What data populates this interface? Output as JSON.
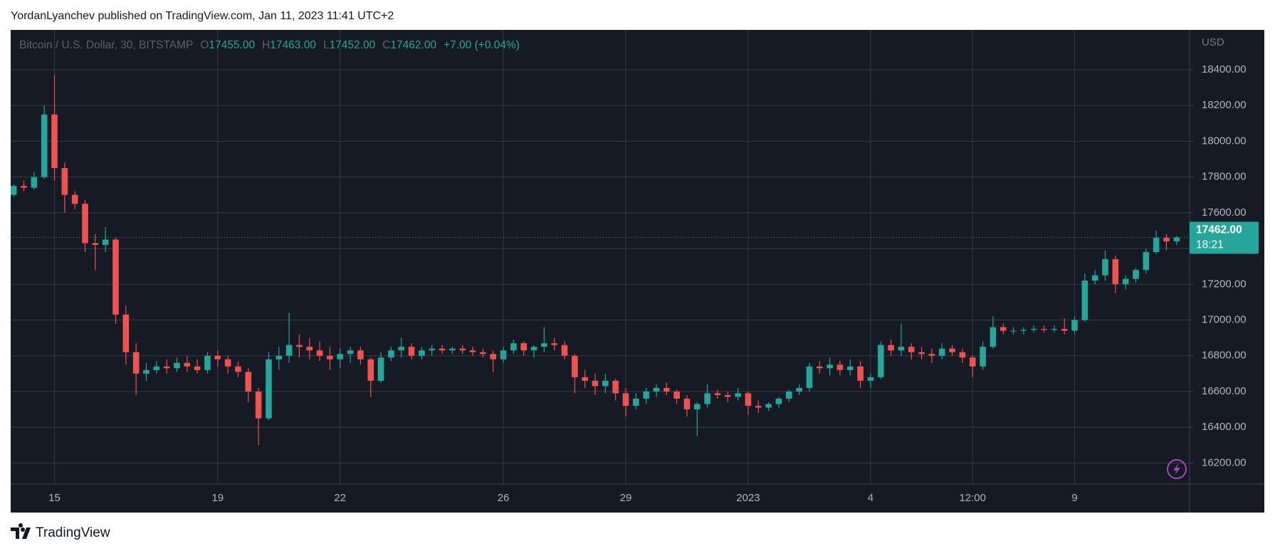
{
  "publisher_line": "YordanLyanchev published on TradingView.com, Jan 11, 2023 11:41 UTC+2",
  "brand": "TradingView",
  "chart_data": {
    "type": "candlestick",
    "symbol": "Bitcoin / U.S. Dollar, 30, BITSTAMP",
    "ohlc": [
      {
        "key": "O",
        "value": "17455.00"
      },
      {
        "key": "H",
        "value": "17463.00"
      },
      {
        "key": "L",
        "value": "17452.00"
      },
      {
        "key": "C",
        "value": "17462.00"
      }
    ],
    "change": "+7.00 (+0.04%)",
    "currency": "USD",
    "last_price": {
      "value": 17462,
      "label": "17462.00"
    },
    "countdown": "18:21",
    "up_color": "#26a69a",
    "down_color": "#ef5350",
    "grid": true,
    "categories": [
      null,
      null,
      null,
      null,
      "15",
      null,
      null,
      null,
      null,
      null,
      null,
      null,
      null,
      null,
      null,
      null,
      null,
      null,
      null,
      null,
      "19",
      null,
      null,
      null,
      null,
      null,
      null,
      null,
      null,
      null,
      null,
      null,
      "22",
      null,
      null,
      null,
      null,
      null,
      null,
      null,
      null,
      null,
      null,
      null,
      null,
      null,
      null,
      null,
      "26",
      null,
      null,
      null,
      null,
      null,
      null,
      null,
      null,
      null,
      null,
      null,
      "29",
      null,
      null,
      null,
      null,
      null,
      null,
      null,
      null,
      null,
      null,
      null,
      "2023",
      null,
      null,
      null,
      null,
      null,
      null,
      null,
      null,
      null,
      null,
      null,
      "4",
      null,
      null,
      null,
      null,
      null,
      null,
      null,
      null,
      null,
      "12:00",
      null,
      null,
      null,
      null,
      null,
      null,
      null,
      null,
      null,
      "9",
      null,
      null,
      null,
      null,
      null,
      null,
      null,
      null,
      null,
      null
    ],
    "open": [
      17700,
      17750,
      17740,
      17800,
      18150,
      17850,
      17700,
      17650,
      17430,
      17420,
      17450,
      17030,
      16820,
      16700,
      16720,
      16740,
      16730,
      16760,
      16740,
      16720,
      16800,
      16780,
      16740,
      16710,
      16600,
      16450,
      16780,
      16800,
      16860,
      16850,
      16830,
      16800,
      16780,
      16810,
      16830,
      16780,
      16660,
      16790,
      16830,
      16850,
      16800,
      16830,
      16840,
      16830,
      16840,
      16830,
      16820,
      16810,
      16780,
      16830,
      16870,
      16830,
      16850,
      16870,
      16860,
      16800,
      16680,
      16660,
      16630,
      16660,
      16590,
      16520,
      16560,
      16600,
      16620,
      16600,
      16560,
      16500,
      16530,
      16590,
      16580,
      16570,
      16590,
      16520,
      16510,
      16530,
      16560,
      16600,
      16620,
      16740,
      16730,
      16750,
      16720,
      16740,
      16660,
      16680,
      16860,
      16830,
      16850,
      16820,
      16810,
      16800,
      16840,
      16820,
      16790,
      16740,
      16850,
      16960,
      16940,
      16940,
      16945,
      16950,
      16945,
      16950,
      16940,
      17000,
      17220,
      17250,
      17340,
      17200,
      17230,
      17280,
      17380,
      17460,
      17440
    ],
    "high": [
      17760,
      17780,
      17830,
      18200,
      18370,
      17880,
      17720,
      17670,
      17480,
      17520,
      17460,
      17080,
      16870,
      16760,
      16770,
      16780,
      16790,
      16800,
      16780,
      16820,
      16830,
      16800,
      16770,
      16730,
      16620,
      16820,
      16850,
      17040,
      16920,
      16900,
      16880,
      16850,
      16840,
      16850,
      16850,
      16790,
      16820,
      16850,
      16900,
      16870,
      16850,
      16860,
      16860,
      16850,
      16860,
      16850,
      16840,
      16830,
      16850,
      16890,
      16880,
      16860,
      16960,
      16900,
      16880,
      16810,
      16720,
      16700,
      16700,
      16670,
      16620,
      16590,
      16620,
      16640,
      16650,
      16610,
      16580,
      16540,
      16640,
      16610,
      16600,
      16620,
      16600,
      16550,
      16540,
      16570,
      16610,
      16640,
      16760,
      16770,
      16790,
      16770,
      16780,
      16770,
      16700,
      16880,
      16890,
      16980,
      16870,
      16850,
      16840,
      16870,
      16860,
      16840,
      16800,
      16880,
      17020,
      16980,
      16960,
      16960,
      16970,
      16970,
      16970,
      17010,
      17020,
      17260,
      17280,
      17390,
      17360,
      17250,
      17290,
      17400,
      17500,
      17480,
      17470
    ],
    "low": [
      17690,
      17720,
      17730,
      17790,
      17780,
      17600,
      17620,
      17380,
      17280,
      17380,
      16980,
      16750,
      16580,
      16660,
      16700,
      16700,
      16710,
      16710,
      16700,
      16700,
      16740,
      16700,
      16680,
      16540,
      16300,
      16440,
      16720,
      16760,
      16790,
      16780,
      16770,
      16720,
      16730,
      16760,
      16750,
      16570,
      16650,
      16770,
      16790,
      16780,
      16780,
      16800,
      16810,
      16810,
      16810,
      16800,
      16790,
      16710,
      16760,
      16810,
      16800,
      16790,
      16820,
      16830,
      16780,
      16590,
      16620,
      16580,
      16590,
      16550,
      16460,
      16500,
      16530,
      16570,
      16580,
      16530,
      16460,
      16350,
      16510,
      16560,
      16540,
      16550,
      16470,
      16480,
      16490,
      16510,
      16540,
      16580,
      16600,
      16700,
      16690,
      16690,
      16690,
      16620,
      16620,
      16670,
      16800,
      16800,
      16780,
      16780,
      16760,
      16780,
      16800,
      16760,
      16680,
      16720,
      16840,
      16920,
      16920,
      16920,
      16930,
      16930,
      16930,
      16920,
      16920,
      16990,
      17200,
      17220,
      17150,
      17170,
      17210,
      17260,
      17370,
      17390,
      17420
    ],
    "close": [
      17750,
      17740,
      17800,
      18150,
      17850,
      17700,
      17650,
      17430,
      17420,
      17450,
      17030,
      16820,
      16700,
      16720,
      16740,
      16730,
      16760,
      16740,
      16720,
      16800,
      16780,
      16740,
      16710,
      16600,
      16450,
      16780,
      16800,
      16860,
      16850,
      16830,
      16800,
      16780,
      16810,
      16830,
      16780,
      16660,
      16790,
      16830,
      16850,
      16800,
      16830,
      16840,
      16830,
      16840,
      16830,
      16820,
      16810,
      16780,
      16830,
      16870,
      16830,
      16850,
      16870,
      16860,
      16800,
      16680,
      16660,
      16630,
      16660,
      16590,
      16520,
      16560,
      16600,
      16620,
      16600,
      16560,
      16500,
      16530,
      16590,
      16580,
      16570,
      16590,
      16520,
      16510,
      16530,
      16560,
      16600,
      16620,
      16740,
      16730,
      16750,
      16720,
      16740,
      16660,
      16680,
      16860,
      16830,
      16850,
      16820,
      16810,
      16800,
      16840,
      16820,
      16790,
      16740,
      16850,
      16960,
      16940,
      16940,
      16945,
      16950,
      16945,
      16950,
      16940,
      17000,
      17220,
      17250,
      17340,
      17200,
      17230,
      17280,
      17380,
      17460,
      17440,
      17462
    ],
    "ylim": [
      16082,
      18623
    ],
    "yticks": [
      {
        "value": 16200,
        "label": "16200.00"
      },
      {
        "value": 16400,
        "label": "16400.00"
      },
      {
        "value": 16600,
        "label": "16600.00"
      },
      {
        "value": 16800,
        "label": "16800.00"
      },
      {
        "value": 17000,
        "label": "17000.00"
      },
      {
        "value": 17200,
        "label": "17200.00"
      },
      {
        "value": 17400,
        "label": "17400.00"
      },
      {
        "value": 17600,
        "label": "17600.00"
      },
      {
        "value": 17800,
        "label": "17800.00"
      },
      {
        "value": 18000,
        "label": "18000.00"
      },
      {
        "value": 18200,
        "label": "18200.00"
      },
      {
        "value": 18400,
        "label": "18400.00"
      }
    ]
  }
}
